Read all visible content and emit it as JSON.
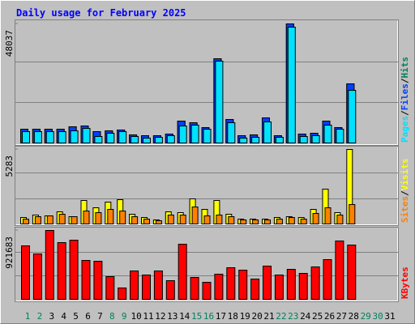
{
  "title": "Daily usage for February 2025",
  "legend_separator": "/",
  "chart_data": [
    {
      "type": "bar",
      "ylim": [
        0,
        48037
      ],
      "yticks": [
        48037
      ],
      "series": [
        {
          "name": "Hits",
          "color": "#00805c",
          "values": [
            5556,
            5556,
            5556,
            5556,
            6536,
            6863,
            4575,
            4902,
            5229,
            3268,
            2941,
            2941,
            3595,
            8824,
            8170,
            6209,
            33987,
            9477,
            2941,
            3268,
            10131,
            2941,
            48037,
            3595,
            3922,
            8824,
            6209,
            23856,
            null,
            null,
            null
          ]
        },
        {
          "name": "Files",
          "color": "#0040ff",
          "values": [
            5556,
            5556,
            5556,
            5556,
            6536,
            6863,
            4575,
            4902,
            5229,
            3268,
            2941,
            2941,
            3595,
            8824,
            8170,
            6209,
            33987,
            9477,
            2941,
            3268,
            10131,
            2941,
            48037,
            3595,
            3922,
            8824,
            6209,
            23856,
            null,
            null,
            null
          ]
        },
        {
          "name": "Pages",
          "color": "#00e0ff",
          "values": [
            4575,
            4575,
            4575,
            4575,
            4902,
            5882,
            2614,
            3922,
            4575,
            2614,
            1961,
            2288,
            2941,
            6863,
            7190,
            5556,
            33007,
            8170,
            1961,
            2288,
            8497,
            2288,
            46732,
            2614,
            2941,
            7190,
            5556,
            21242,
            null,
            null,
            null
          ]
        }
      ]
    },
    {
      "type": "bar",
      "ylim": [
        0,
        5283
      ],
      "yticks": [
        5283
      ],
      "series": [
        {
          "name": "Visits",
          "color": "#ffff00",
          "values": [
            459,
            632,
            574,
            861,
            517,
            1665,
            1149,
            1550,
            1723,
            689,
            459,
            287,
            861,
            804,
            1780,
            1034,
            1665,
            689,
            345,
            345,
            345,
            459,
            517,
            459,
            1034,
            2469,
            804,
            5283,
            null,
            null,
            null
          ]
        },
        {
          "name": "Sites",
          "color": "#ff8000",
          "values": [
            345,
            517,
            574,
            689,
            517,
            919,
            804,
            1034,
            919,
            517,
            345,
            230,
            632,
            632,
            1206,
            574,
            632,
            517,
            287,
            287,
            287,
            345,
            459,
            345,
            746,
            1149,
            632,
            1378,
            null,
            null,
            null
          ]
        }
      ]
    },
    {
      "type": "bar",
      "ylim": [
        0,
        921683
      ],
      "yticks": [
        921683
      ],
      "categories": [
        "1",
        "2",
        "3",
        "4",
        "5",
        "6",
        "7",
        "8",
        "9",
        "10",
        "11",
        "12",
        "13",
        "14",
        "15",
        "16",
        "17",
        "18",
        "19",
        "20",
        "21",
        "22",
        "23",
        "24",
        "25",
        "26",
        "27",
        "28",
        "29",
        "30",
        "31"
      ],
      "category_colors": [
        "#00805c",
        "#00805c",
        "#000000",
        "#000000",
        "#000000",
        "#000000",
        "#000000",
        "#00805c",
        "#00805c",
        "#000000",
        "#000000",
        "#000000",
        "#000000",
        "#000000",
        "#00805c",
        "#00805c",
        "#000000",
        "#000000",
        "#000000",
        "#000000",
        "#000000",
        "#00805c",
        "#00805c",
        "#000000",
        "#000000",
        "#000000",
        "#000000",
        "#000000",
        "#00805c",
        "#00805c",
        "#000000"
      ],
      "series": [
        {
          "name": "KBytes",
          "color": "#ff0000",
          "values": [
            715665,
            607221,
            921683,
            759042,
            791571,
            520479,
            509636,
            303609,
            151805,
            379511,
            325296,
            379511,
            249394,
            737357,
            292766,
            227708,
            336139,
            422888,
            390354,
            271081,
            444574,
            325296,
            401197,
            346982,
            433731,
            531322,
            780728,
            726514,
            null,
            null,
            null
          ]
        }
      ]
    }
  ]
}
